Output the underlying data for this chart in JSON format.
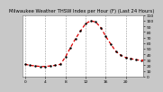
{
  "title": "Milwaukee Weather THSW Index per Hour (F) (Last 24 Hours)",
  "hours": [
    0,
    1,
    2,
    3,
    4,
    5,
    6,
    7,
    8,
    9,
    10,
    11,
    12,
    13,
    14,
    15,
    16,
    17,
    18,
    19,
    20,
    21,
    22,
    23
  ],
  "values": [
    22,
    20,
    19,
    18,
    18,
    19,
    20,
    22,
    35,
    52,
    68,
    82,
    95,
    100,
    98,
    88,
    72,
    58,
    45,
    38,
    34,
    32,
    30,
    29
  ],
  "ylim": [
    0,
    110
  ],
  "yticks": [
    0,
    10,
    20,
    30,
    40,
    50,
    60,
    70,
    80,
    90,
    100,
    110
  ],
  "ytick_labels": [
    "0",
    "10",
    "20",
    "30",
    "40",
    "50",
    "60",
    "70",
    "80",
    "90",
    "100",
    "110"
  ],
  "xticks": [
    0,
    4,
    8,
    12,
    16,
    20
  ],
  "xtick_labels": [
    "0",
    "4",
    "8",
    "12",
    "16",
    "20"
  ],
  "vgrid_hours": [
    0,
    4,
    8,
    12,
    16,
    20
  ],
  "line_color": "#dd0000",
  "marker_color": "#000000",
  "bg_color": "#c8c8c8",
  "plot_bg_color": "#ffffff",
  "grid_color": "#888888",
  "title_color": "#000000",
  "title_fontsize": 3.8,
  "tick_fontsize": 3.2,
  "line_width": 0.9,
  "marker_size": 1.4,
  "last_marker_color": "#dd0000"
}
